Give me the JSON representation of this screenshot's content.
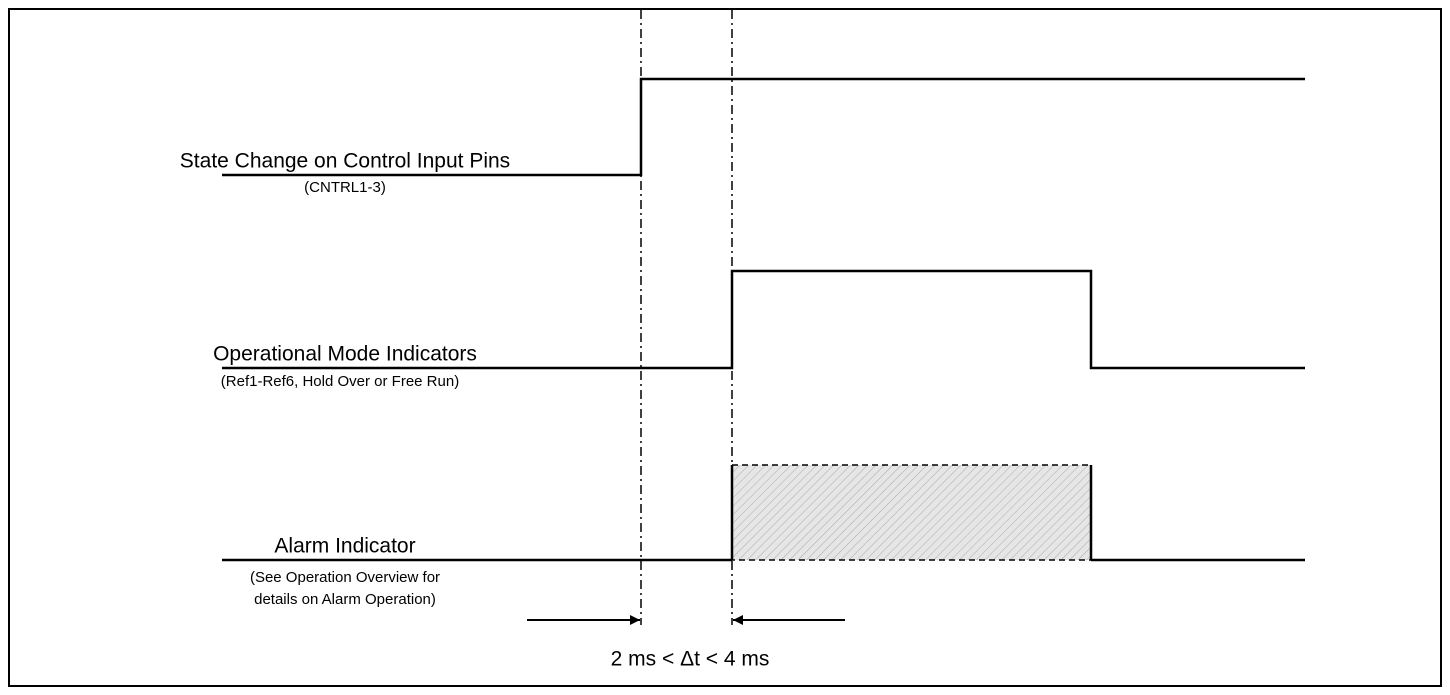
{
  "signals": [
    {
      "label": "State Change on Control Input Pins",
      "sublabel": [
        "(CNTRL1-3)"
      ]
    },
    {
      "label": "Operational Mode Indicators",
      "sublabel": [
        "(Ref1-Ref6, Hold Over or Free Run)"
      ]
    },
    {
      "label": "Alarm Indicator",
      "sublabel": [
        "(See Operation Overview for",
        "details on Alarm Operation)"
      ]
    }
  ],
  "timing": {
    "label": "2 ms < Δt < 4 ms"
  }
}
